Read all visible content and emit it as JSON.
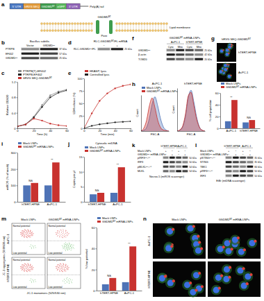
{
  "figure": {
    "letters": [
      "a",
      "b",
      "c",
      "d",
      "e",
      "f",
      "g",
      "h",
      "i",
      "j",
      "k",
      "l",
      "m",
      "n"
    ],
    "schematic": {
      "parts": [
        "5′ UTR",
        "hRVG SEQ",
        "GSDMDᴺᵀ",
        "eGFP",
        "3′ UTR"
      ],
      "tail": "Poly(A) tail",
      "protein": "GSDMDᴺᵀ",
      "membrane": "Lipid membrane",
      "pore": "Pore"
    },
    "blots": [
      {
        "header": "Bacillus subtilis",
        "columns": [
          "Vector",
          "GSDMDᴺᵀ"
        ],
        "rows": [
          {
            "label": "PTRPB",
            "kda": "37 kDa"
          },
          {
            "label": "EF402",
            "kda": "57 kDa"
          },
          {
            "label": "GSDMDᴺᵀ",
            "kda": "25 kDa"
          }
        ]
      },
      {
        "header": "RLC-GSDMDᴺᵀ/FL mRNA",
        "columns": [
          "−",
          "+"
        ],
        "rows": [
          {
            "label": "RLC-GSDMDᴺᵀ/FL",
            "kda": "25 kDa"
          }
        ]
      },
      {
        "header": "GSDMDᴺᵀ mRNA-LNPs",
        "groups": [
          "AsPC-1",
          "hTERT-HPNE"
        ],
        "columns": [
          "Cyto",
          "Mito",
          "Cyto",
          "Mito"
        ],
        "rows": [
          {
            "label": "GSDMDᴺᵀ",
            "kda": "25 kDa"
          },
          {
            "label": "β-actin",
            "kda": "42 kDa"
          },
          {
            "label": "TOM20",
            "kda": "20 kDa"
          }
        ]
      },
      {
        "groups": [
          "hTERT-HPNE",
          "AsPC-1"
        ],
        "conditions": [
          {
            "label": "Mock LNPs",
            "signs": [
              "+",
              "−",
              "+",
              "−"
            ]
          },
          {
            "label": "GSDMDᴺᵀ mRNA-LNPs",
            "signs": [
              "−",
              "+",
              "−",
              "+"
            ]
          }
        ],
        "rows": [
          {
            "label": "pIRF3ˢᵉʳ³⁹⁶",
            "kda": "50 kDa"
          },
          {
            "label": "IRF3",
            "kda": "50 kDa"
          },
          {
            "label": "pMLKLˢᵉʳ³⁵⁸",
            "kda": "54 kDa"
          },
          {
            "label": "MLKL",
            "kda": "54 kDa"
          }
        ],
        "footer": "Necrox-5 (mtROS scavenger)"
      },
      {
        "groups": [
          "hTERT-HPNE",
          "AsPC-1"
        ],
        "conditions": [
          {
            "label": "Mock LNPs",
            "signs": [
              "+",
              "−",
              "+",
              "−"
            ]
          },
          {
            "label": "GSDMDᴺᵀ mRNA-LNPs",
            "signs": [
              "−",
              "+",
              "−",
              "+"
            ]
          }
        ],
        "rows": [
          {
            "label": "pSTINGˢᵉʳ³⁶⁶",
            "kda": "35 kDa"
          },
          {
            "label": "STING",
            "kda": "35 kDa"
          },
          {
            "label": "TBK1",
            "kda": "84 kDa"
          },
          {
            "label": "pIRF3ˢᵉʳ³⁹⁶",
            "kda": "50 kDa"
          },
          {
            "label": "IRF3",
            "kda": "50 kDa"
          }
        ],
        "footer": "EtBr (mtDNA scavenger)"
      }
    ],
    "images": {
      "g": {
        "header": "hRVG SEQ-GSDMDᴺᵀ",
        "rows": [
          "hTERT-HPNE",
          "AsPC-1"
        ]
      },
      "n": {
        "columns": [
          "Mock LNPs",
          "GSDMDᴺᵀ mRNA-LNPs"
        ],
        "rows": [
          "AsPC-1",
          "hTERT-HPNE"
        ]
      }
    },
    "flow": {
      "columns": [
        "Mock LNPs",
        "GSDMDᴺᵀ mRNA-LNPs"
      ],
      "rows": [
        "AsPC-1",
        "hTERT-HPNE"
      ],
      "y_label": "JC-1 aggregates (590/600 nm)",
      "x_label": "JC-1 monomers (525/530 nm)",
      "gates": [
        "Normal potential",
        "Low potential"
      ]
    }
  },
  "chart_data": [
    {
      "type": "line",
      "x_label": "Time (h)",
      "y_label": "Relative OD600",
      "x": [
        0,
        10,
        20,
        30,
        40,
        50,
        60
      ],
      "xlim": [
        0,
        60
      ],
      "xticks": [
        0,
        20,
        40,
        60
      ],
      "ylim": [
        0,
        1.2
      ],
      "yticks": [
        0,
        0.4,
        0.8,
        1.2
      ],
      "legend": "top",
      "series": [
        {
          "name": "PTRPB(T)-EF402",
          "color": "#8c8c8c",
          "marker": "circle",
          "values": [
            0.05,
            0.1,
            0.3,
            0.6,
            0.85,
            0.95,
            1.0
          ]
        },
        {
          "name": "PTRPB-EF402",
          "color": "#222222",
          "marker": "circle",
          "values": [
            0.05,
            0.1,
            0.28,
            0.55,
            0.8,
            0.92,
            0.98
          ]
        },
        {
          "name": "hRVG SEQ-GSDMDᴺᵀ",
          "color": "#c8322f",
          "marker": "circle",
          "values": [
            0.05,
            0.1,
            0.25,
            0.2,
            0.12,
            0.08,
            0.06
          ]
        }
      ]
    },
    {
      "type": "line",
      "x_label": "Time (min)",
      "y_label": "LDH release (%)",
      "x": [
        0,
        10,
        20,
        30,
        40,
        50,
        60
      ],
      "xlim": [
        0,
        60
      ],
      "xticks": [
        0,
        20,
        40,
        60
      ],
      "ylim": [
        0,
        100
      ],
      "yticks": [
        0,
        25,
        50,
        75,
        100
      ],
      "legend": "top",
      "series": [
        {
          "name": "HKASP, lysis",
          "color": "#c8322f",
          "marker": "circle",
          "values": [
            0,
            30,
            55,
            70,
            80,
            85,
            88
          ]
        },
        {
          "name": "Controlled lysis",
          "color": "#222222",
          "marker": "circle",
          "values": [
            0,
            5,
            8,
            10,
            12,
            13,
            14
          ]
        }
      ]
    },
    {
      "type": "area",
      "title": "AsPC-1",
      "x_label": "FSC-A",
      "y_label": "Count",
      "x": [
        0,
        1,
        2,
        3,
        4,
        5,
        6,
        7,
        8,
        9,
        10
      ],
      "xlim": [
        0,
        10
      ],
      "ylim": [
        0,
        100
      ],
      "tick_labels": false,
      "legend": "top",
      "series": [
        {
          "name": "Mock LNPs",
          "color": "#4f73b6",
          "values": [
            0,
            2,
            10,
            35,
            75,
            95,
            70,
            35,
            12,
            3,
            0
          ]
        },
        {
          "name": "GSDMDᴺᵀ mRNA-LNPs",
          "color": "#c8322f",
          "values": [
            0,
            8,
            30,
            70,
            92,
            65,
            30,
            10,
            3,
            1,
            0
          ]
        }
      ]
    },
    {
      "type": "area",
      "title": "hTERT-HPNE",
      "x_label": "FSC-A",
      "y_label": "Count",
      "x": [
        0,
        1,
        2,
        3,
        4,
        5,
        6,
        7,
        8,
        9,
        10
      ],
      "xlim": [
        0,
        10
      ],
      "ylim": [
        0,
        100
      ],
      "tick_labels": false,
      "series": [
        {
          "name": "Mock LNPs",
          "color": "#4f73b6",
          "values": [
            0,
            2,
            10,
            35,
            78,
            95,
            68,
            33,
            10,
            2,
            0
          ]
        },
        {
          "name": "GSDMDᴺᵀ mRNA-LNPs",
          "color": "#c8322f",
          "values": [
            0,
            3,
            12,
            40,
            82,
            90,
            60,
            28,
            9,
            2,
            0
          ]
        }
      ]
    },
    {
      "type": "bar",
      "y_label": "% cell population",
      "categories": [
        "AsPC-1",
        "hTERT-HPNE"
      ],
      "ylim": [
        0,
        60
      ],
      "yticks": [
        0,
        20,
        40,
        60
      ],
      "legend": "top",
      "annotations": [
        "**",
        "NS"
      ],
      "series": [
        {
          "name": "Mock LNPs",
          "color": "#4f73b6",
          "values": [
            12,
            10
          ]
        },
        {
          "name": "GSDMDᴺᵀ mRNA-LNPs",
          "color": "#c8322f",
          "values": [
            48,
            14
          ]
        }
      ]
    },
    {
      "type": "bar",
      "y_label": "mtROS (% of mock)",
      "categories": [
        "hTERT-HPNE",
        "AsPC-1"
      ],
      "ylim": [
        0,
        300
      ],
      "yticks": [
        0,
        100,
        200,
        300
      ],
      "legend": "top",
      "annotations": [
        "NS",
        "**"
      ],
      "series": [
        {
          "name": "Mock LNPs",
          "color": "#4f73b6",
          "values": [
            100,
            100
          ]
        },
        {
          "name": "GSDMDᴺᵀ mRNA-LNPs",
          "color": "#c8322f",
          "values": [
            115,
            240
          ]
        }
      ]
    },
    {
      "type": "bar",
      "title": "Cytosolic mtDNA",
      "y_label": "Copies per μl",
      "categories": [
        "hTERT-HPNE",
        "AsPC-1"
      ],
      "ylim": [
        0,
        15
      ],
      "yticks": [
        0,
        5,
        10,
        15
      ],
      "legend": "top",
      "annotations": [
        "NS",
        "**"
      ],
      "series": [
        {
          "name": "Mock LNPs",
          "color": "#4f73b6",
          "values": [
            2.5,
            3
          ]
        },
        {
          "name": "GSDMDᴺᵀ mRNA-LNPs",
          "color": "#c8322f",
          "values": [
            3,
            11.5
          ]
        }
      ]
    },
    {
      "type": "bar",
      "y_label": "% low potential",
      "categories": [
        "hTERT-HPNE",
        "AsPC-1"
      ],
      "ylim": [
        0,
        60
      ],
      "yticks": [
        0,
        20,
        40,
        60
      ],
      "legend": "top",
      "annotations": [
        "NS",
        "**"
      ],
      "series": [
        {
          "name": "Mock LNPs",
          "color": "#4f73b6",
          "values": [
            6,
            8
          ]
        },
        {
          "name": "GSDMDᴺᵀ mRNA-LNPs",
          "color": "#c8322f",
          "values": [
            12,
            42
          ]
        }
      ]
    }
  ]
}
